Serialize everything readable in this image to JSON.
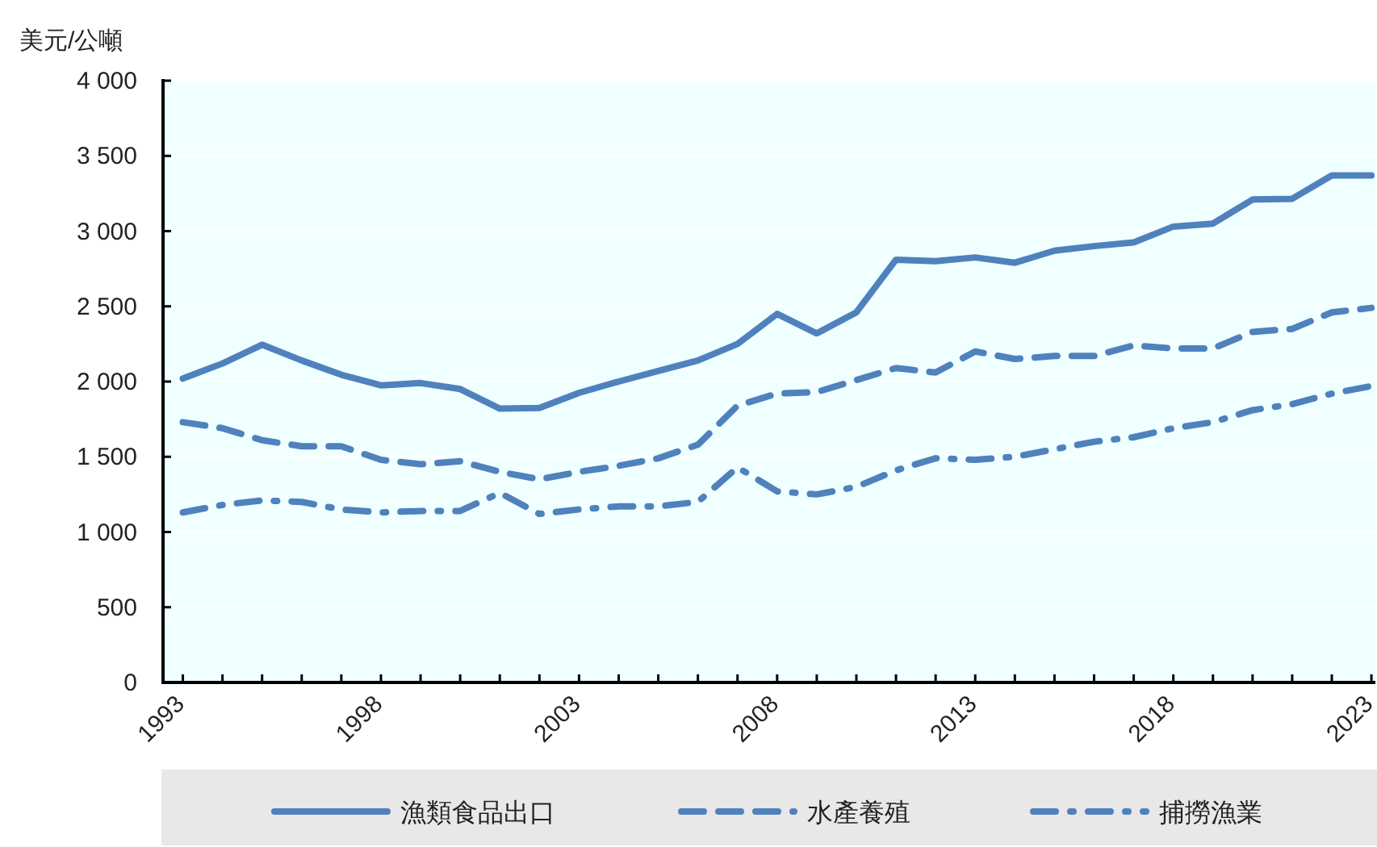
{
  "chart_data": {
    "type": "line",
    "ylabel": "美元/公噸",
    "x": [
      1993,
      1994,
      1995,
      1996,
      1997,
      1998,
      1999,
      2000,
      2001,
      2002,
      2003,
      2004,
      2005,
      2006,
      2007,
      2008,
      2009,
      2010,
      2011,
      2012,
      2013,
      2014,
      2015,
      2016,
      2017,
      2018,
      2019,
      2020,
      2021,
      2022,
      2023
    ],
    "series": [
      {
        "name": "漁類食品出口",
        "color": "#4f81bd",
        "line_style": "solid",
        "values": [
          2020,
          2120,
          2245,
          2140,
          2045,
          1975,
          1990,
          1950,
          1820,
          1825,
          1925,
          2000,
          2070,
          2140,
          2250,
          2450,
          2320,
          2460,
          2810,
          2800,
          2825,
          2790,
          2870,
          2900,
          2925,
          3030,
          3050,
          3210,
          3215,
          3370,
          3370
        ]
      },
      {
        "name": "水產養殖",
        "color": "#4f81bd",
        "line_style": "dashed",
        "values": [
          1730,
          1690,
          1610,
          1570,
          1570,
          1480,
          1450,
          1470,
          1400,
          1350,
          1400,
          1440,
          1490,
          1580,
          1840,
          1920,
          1930,
          2010,
          2090,
          2060,
          2200,
          2150,
          2170,
          2170,
          2240,
          2220,
          2220,
          2330,
          2350,
          2460,
          2490
        ]
      },
      {
        "name": "捕撈漁業",
        "color": "#4f81bd",
        "line_style": "dashdot",
        "values": [
          1130,
          1180,
          1210,
          1200,
          1150,
          1130,
          1140,
          1140,
          1260,
          1120,
          1150,
          1170,
          1170,
          1200,
          1430,
          1270,
          1250,
          1300,
          1410,
          1490,
          1480,
          1500,
          1550,
          1600,
          1630,
          1690,
          1730,
          1810,
          1850,
          1920,
          1970
        ]
      }
    ],
    "xlim": [
      1992.5,
      2023.1
    ],
    "xticks": [
      {
        "value": 1993,
        "label": "1993"
      },
      {
        "value": 1994,
        "label": null
      },
      {
        "value": 1995,
        "label": null
      },
      {
        "value": 1996,
        "label": null
      },
      {
        "value": 1997,
        "label": null
      },
      {
        "value": 1998,
        "label": "1998"
      },
      {
        "value": 1999,
        "label": null
      },
      {
        "value": 2000,
        "label": null
      },
      {
        "value": 2001,
        "label": null
      },
      {
        "value": 2002,
        "label": null
      },
      {
        "value": 2003,
        "label": "2003"
      },
      {
        "value": 2004,
        "label": null
      },
      {
        "value": 2005,
        "label": null
      },
      {
        "value": 2006,
        "label": null
      },
      {
        "value": 2007,
        "label": null
      },
      {
        "value": 2008,
        "label": "2008"
      },
      {
        "value": 2009,
        "label": null
      },
      {
        "value": 2010,
        "label": null
      },
      {
        "value": 2011,
        "label": null
      },
      {
        "value": 2012,
        "label": null
      },
      {
        "value": 2013,
        "label": "2013"
      },
      {
        "value": 2014,
        "label": null
      },
      {
        "value": 2015,
        "label": null
      },
      {
        "value": 2016,
        "label": null
      },
      {
        "value": 2017,
        "label": null
      },
      {
        "value": 2018,
        "label": "2018"
      },
      {
        "value": 2019,
        "label": null
      },
      {
        "value": 2020,
        "label": null
      },
      {
        "value": 2021,
        "label": null
      },
      {
        "value": 2022,
        "label": null
      },
      {
        "value": 2023,
        "label": "2023"
      }
    ],
    "ylim": [
      0,
      4000
    ],
    "yticks": [
      0,
      500,
      {
        "value": 1000,
        "label": "1 000"
      },
      {
        "value": 1500,
        "label": "1 500"
      },
      {
        "value": 2000,
        "label": "2 000"
      },
      {
        "value": 2500,
        "label": "2 500"
      },
      {
        "value": 3000,
        "label": "3 000"
      },
      {
        "value": 3500,
        "label": "3 500"
      },
      {
        "value": 4000,
        "label": "4 000"
      }
    ],
    "grid": "y",
    "legend": "bottom",
    "marker": "none"
  }
}
